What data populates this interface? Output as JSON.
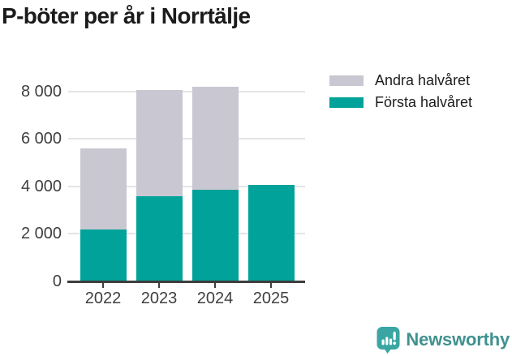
{
  "title": "P-böter per år i Norrtälje",
  "legend": [
    {
      "label": "Andra halvåret",
      "color": "#c9c7d1"
    },
    {
      "label": "Första halvåret",
      "color": "#00a29a"
    }
  ],
  "chart_data": {
    "type": "bar",
    "stacked": true,
    "title": "P-böter per år i Norrtälje",
    "xlabel": "",
    "ylabel": "",
    "categories": [
      "2022",
      "2023",
      "2024",
      "2025"
    ],
    "series": [
      {
        "name": "Första halvåret",
        "color": "#00a29a",
        "values": [
          2200,
          3580,
          3870,
          4060
        ]
      },
      {
        "name": "Andra halvåret",
        "color": "#c9c7d1",
        "values": [
          3400,
          4480,
          4330,
          0
        ]
      }
    ],
    "totals": [
      5600,
      8060,
      8200,
      4060
    ],
    "ylim": [
      0,
      8600
    ],
    "yticks": [
      {
        "value": 0,
        "label": "0"
      },
      {
        "value": 2000,
        "label": "2 000"
      },
      {
        "value": 4000,
        "label": "4 000"
      },
      {
        "value": 6000,
        "label": "6 000"
      },
      {
        "value": 8000,
        "label": "8 000"
      }
    ],
    "grid": true,
    "legend_position": "top-right",
    "colors": {
      "gridline": "#e4e4e7",
      "axis_line": "#3d3d3d",
      "tick_label": "#3f3f3f"
    }
  },
  "branding": {
    "wordmark": "Newsworthy",
    "icon_color": "#3aa5a2",
    "text_color": "#40918f"
  }
}
